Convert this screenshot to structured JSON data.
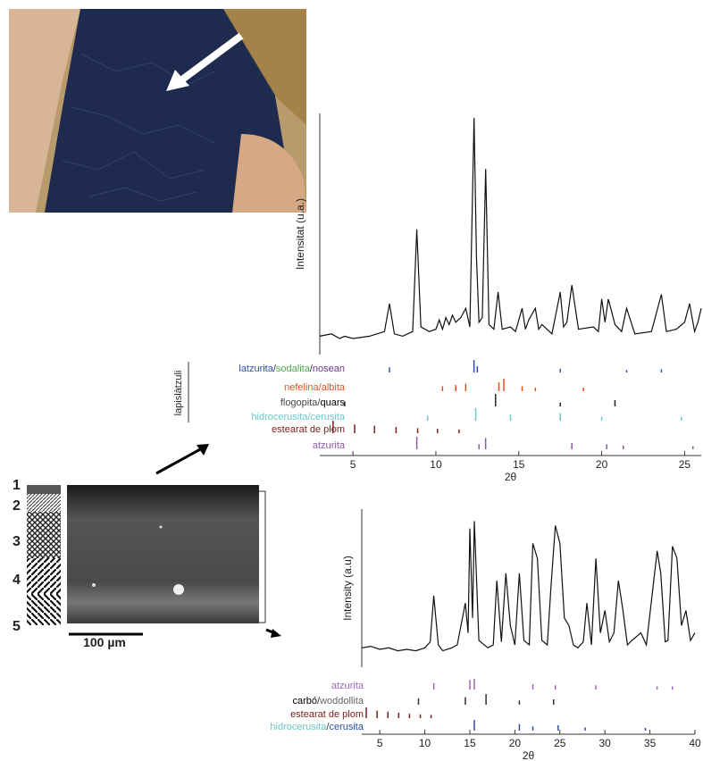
{
  "figure": {
    "layers": [
      "1",
      "2",
      "3",
      "4",
      "5"
    ],
    "scale_bar": "100 µm"
  },
  "chart_data": [
    {
      "type": "line",
      "x_label": "2θ",
      "y_label": "Intensitat (u.a.)",
      "color": "#111",
      "xlim": [
        3,
        26
      ],
      "xticks": [
        5,
        10,
        15,
        20,
        25
      ],
      "ylim": [
        0,
        100
      ],
      "group_label": "lapislàtzuli",
      "x": [
        3,
        3.7,
        4.2,
        4.5,
        5,
        6,
        6.9,
        7.2,
        7.5,
        8,
        8.6,
        8.85,
        9.1,
        9.6,
        10,
        10.2,
        10.4,
        10.6,
        10.8,
        11,
        11.2,
        11.5,
        11.8,
        12.05,
        12.3,
        12.45,
        12.6,
        12.8,
        13.0,
        13.2,
        13.5,
        13.75,
        14,
        14.5,
        14.8,
        15.2,
        15.4,
        15.6,
        16,
        16.2,
        16.4,
        17,
        17.5,
        17.7,
        17.9,
        18.2,
        18.6,
        19.5,
        19.8,
        20.0,
        20.2,
        20.4,
        20.8,
        21.2,
        21.5,
        22,
        23,
        23.6,
        23.9,
        24.5,
        25,
        25.3,
        25.6,
        25.8,
        26
      ],
      "values": [
        6,
        7,
        5,
        6,
        5,
        6,
        8,
        20,
        7,
        6,
        8,
        52,
        10,
        8,
        9,
        13,
        9,
        14,
        11,
        15,
        12,
        14,
        18,
        10,
        100,
        40,
        12,
        14,
        78,
        11,
        9,
        25,
        9,
        10,
        8,
        18,
        9,
        13,
        18,
        9,
        11,
        7,
        25,
        10,
        12,
        28,
        9,
        10,
        8,
        22,
        12,
        22,
        11,
        8,
        18,
        7,
        8,
        24,
        8,
        9,
        12,
        20,
        8,
        12,
        18
      ],
      "phases": [
        {
          "label_parts": [
            {
              "text": "latzurita",
              "color": "#2f4fa8"
            },
            {
              "text": "/",
              "color": "#333"
            },
            {
              "text": "sodalita",
              "color": "#4aa84a"
            },
            {
              "text": "/",
              "color": "#333"
            },
            {
              "text": "nosean",
              "color": "#6a3a8a"
            }
          ],
          "sticks": [
            7.2,
            12.3,
            12.5,
            17.5,
            21.5,
            23.6
          ],
          "heights": [
            40,
            100,
            50,
            30,
            20,
            25
          ],
          "color": "#2f4fa8"
        },
        {
          "label_parts": [
            {
              "text": "nefelina",
              "color": "#e8501e"
            },
            {
              "text": "/",
              "color": "#e8501e"
            },
            {
              "text": "albita",
              "color": "#e8501e"
            }
          ],
          "sticks": [
            10.4,
            11.2,
            11.8,
            13.8,
            14.1,
            15.2,
            16.0,
            18.9
          ],
          "heights": [
            40,
            50,
            60,
            70,
            100,
            40,
            30,
            30
          ],
          "color": "#e8501e"
        },
        {
          "label_parts": [
            {
              "text": "flogopita",
              "color": "#444"
            },
            {
              "text": "/",
              "color": "#444"
            },
            {
              "text": "quars",
              "color": "#000"
            }
          ],
          "sticks": [
            4.5,
            13.6,
            17.5,
            20.8
          ],
          "heights": [
            40,
            100,
            30,
            50
          ],
          "color": "#222"
        },
        {
          "label_parts": [
            {
              "text": "hidrocerusita",
              "color": "#6cc6c6"
            },
            {
              "text": "/",
              "color": "#6cc6c6"
            },
            {
              "text": "cerusita",
              "color": "#6cc6c6"
            }
          ],
          "sticks": [
            9.5,
            12.4,
            14.5,
            17.5,
            20.0,
            24.8
          ],
          "heights": [
            40,
            100,
            50,
            60,
            30,
            30
          ],
          "color": "#6cc6c6"
        },
        {
          "label_parts": [
            {
              "text": "estearat de plom",
              "color": "#7a2020"
            }
          ],
          "sticks": [
            3.8,
            5.1,
            6.3,
            7.6,
            8.9,
            10.1,
            11.4
          ],
          "heights": [
            100,
            70,
            60,
            50,
            40,
            35,
            30
          ],
          "color": "#7a2020"
        },
        {
          "label_parts": [
            {
              "text": "atzurita",
              "color": "#8a5aa8"
            }
          ],
          "sticks": [
            8.85,
            12.6,
            13.0,
            18.2,
            20.3,
            21.3,
            25.5
          ],
          "heights": [
            100,
            40,
            90,
            50,
            40,
            30,
            25
          ],
          "color": "#8a5aa8"
        }
      ]
    },
    {
      "type": "line",
      "x_label": "2θ",
      "y_label": "Intensity (a.u)",
      "color": "#111",
      "xlim": [
        3,
        40
      ],
      "xticks": [
        5,
        10,
        15,
        20,
        25,
        30,
        35,
        40
      ],
      "ylim": [
        0,
        100
      ],
      "x": [
        3,
        4,
        5,
        6,
        7,
        8,
        9,
        10,
        10.6,
        11,
        11.5,
        12,
        13,
        13.6,
        14.5,
        14.8,
        15,
        15.3,
        15.5,
        16,
        17,
        17.6,
        18,
        18.5,
        19,
        19.5,
        20,
        20.5,
        21,
        21.6,
        22,
        22.5,
        23,
        23.6,
        24,
        24.5,
        25,
        25.5,
        26,
        26.5,
        27,
        27.6,
        28,
        28.5,
        29,
        29.5,
        30,
        30.5,
        31,
        31.5,
        32,
        32.5,
        33,
        34,
        34.6,
        35.8,
        36.2,
        36.7,
        37,
        37.5,
        38,
        38.5,
        39,
        39.5,
        40
      ],
      "values": [
        10,
        11,
        9,
        10,
        8,
        9,
        8,
        10,
        14,
        45,
        12,
        8,
        10,
        12,
        40,
        20,
        90,
        30,
        95,
        15,
        10,
        12,
        55,
        14,
        60,
        25,
        12,
        60,
        15,
        12,
        80,
        70,
        15,
        12,
        50,
        92,
        80,
        30,
        25,
        12,
        10,
        14,
        40,
        12,
        70,
        20,
        35,
        14,
        20,
        55,
        35,
        12,
        15,
        20,
        12,
        75,
        60,
        14,
        15,
        78,
        70,
        25,
        35,
        15,
        20
      ],
      "phases": [
        {
          "label_parts": [
            {
              "text": "atzurita",
              "color": "#9a6ab8"
            }
          ],
          "sticks": [
            11,
            15,
            15.5,
            22,
            24.5,
            29,
            35.8,
            37.5
          ],
          "heights": [
            60,
            90,
            100,
            50,
            40,
            40,
            30,
            30
          ],
          "color": "#9a6ab8"
        },
        {
          "label_parts": [
            {
              "text": "carbó",
              "color": "#000"
            },
            {
              "text": "/",
              "color": "#333"
            },
            {
              "text": "woddollita",
              "color": "#666"
            }
          ],
          "sticks": [
            9.3,
            14.5,
            16.8,
            20.5,
            24.3
          ],
          "heights": [
            60,
            70,
            100,
            40,
            50
          ],
          "color": "#333"
        },
        {
          "label_parts": [
            {
              "text": "estearat de plom",
              "color": "#7a2020"
            }
          ],
          "sticks": [
            3.5,
            4.7,
            5.9,
            7.1,
            8.3,
            9.5,
            10.7
          ],
          "heights": [
            100,
            70,
            60,
            50,
            40,
            35,
            30
          ],
          "color": "#7a2020"
        },
        {
          "label_parts": [
            {
              "text": "hidrocerusita",
              "color": "#6cc6c6"
            },
            {
              "text": "/",
              "color": "#333"
            },
            {
              "text": "cerusita",
              "color": "#2f4fa8"
            }
          ],
          "sticks": [
            15.5,
            20.5,
            22,
            24.8,
            27.8,
            34.5
          ],
          "heights": [
            100,
            60,
            40,
            50,
            30,
            25
          ],
          "color": "#2f4fa8"
        }
      ]
    }
  ]
}
